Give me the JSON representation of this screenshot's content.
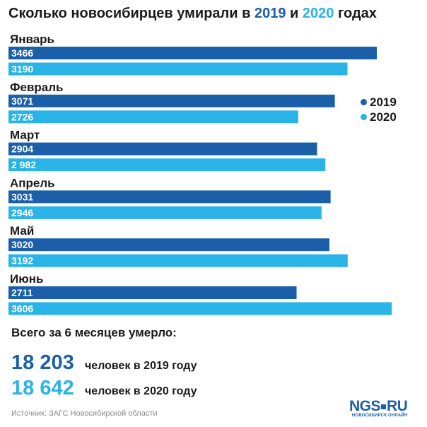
{
  "title": {
    "prefix": "Сколько новосибирцев умирали в",
    "year_a": "2019",
    "mid": "и",
    "year_b": "2020",
    "suffix": "годах"
  },
  "colors": {
    "s2019": "#1a5fa8",
    "s2020": "#29b3e6"
  },
  "chart_data": {
    "type": "bar",
    "orientation": "horizontal",
    "categories": [
      "Январь",
      "Февраль",
      "Март",
      "Апрель",
      "Май",
      "Июнь"
    ],
    "series": [
      {
        "name": "2019",
        "values": [
          3466,
          3071,
          2904,
          3031,
          3020,
          2711
        ],
        "labels": [
          "3466",
          "3071",
          "2904",
          "3031",
          "3020",
          "2711"
        ]
      },
      {
        "name": "2020",
        "values": [
          3190,
          2726,
          2982,
          2946,
          3192,
          3606
        ],
        "labels": [
          "3190",
          "2726",
          "2 982",
          "2946",
          "3192",
          "3606"
        ]
      }
    ],
    "legend_position": "right",
    "grid": false
  },
  "totals": {
    "heading": "Всего за 6 месяцев умерло:",
    "items": [
      {
        "number": "18 203",
        "text": "человек в 2019 году"
      },
      {
        "number": "18 642",
        "text": "человек в 2020 году"
      }
    ]
  },
  "source": "Источник: ЗАГС Новосибирской области",
  "logo": {
    "brand_a": "NGS",
    "brand_b": "RU",
    "sub": "НОВОСИБИРСК ОНЛАЙН"
  }
}
